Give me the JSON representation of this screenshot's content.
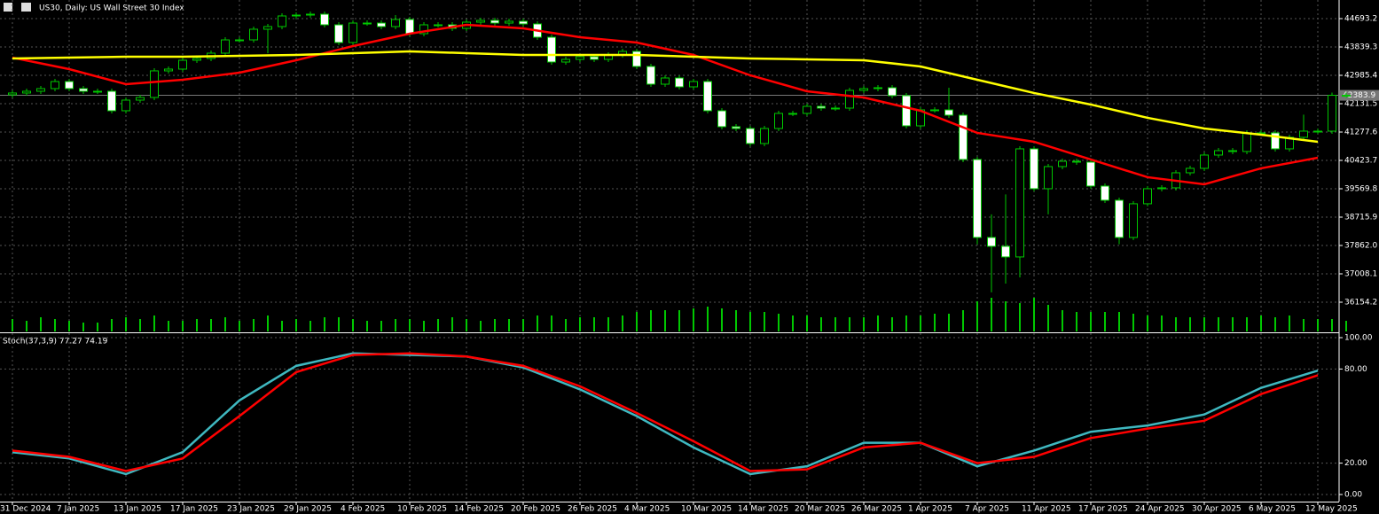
{
  "chart_data": {
    "type": "candlestick",
    "title": "US30, Daily: US Wall Street 30 Index",
    "open": [
      42400,
      42453,
      42506,
      42586,
      42799,
      42586,
      42506,
      42506,
      41919,
      42239,
      42319,
      43120,
      43173,
      43440,
      43493,
      43653,
      44053,
      44053,
      44374,
      44454,
      44774,
      44800,
      44827,
      44507,
      43973,
      44560,
      44560,
      44454,
      44667,
      44240,
      44507,
      44507,
      44400,
      44587,
      44640,
      44560,
      44614,
      44534,
      44133,
      43386,
      43466,
      43546,
      43466,
      43600,
      43707,
      43253,
      42719,
      42906,
      42639,
      42799,
      41919,
      41439,
      41385,
      40932,
      41385,
      41839,
      41839,
      42052,
      41999,
      41999,
      42533,
      42586,
      42613,
      42373,
      41465,
      41946,
      41946,
      41786,
      40452,
      38104,
      37837,
      37517,
      40772,
      39571,
      40238,
      40398,
      40372,
      39651,
      39224,
      38104,
      39118,
      39571,
      39598,
      40051,
      40185,
      40585,
      40718,
      40692,
      41252,
      41252,
      40772,
      41119,
      41305,
      41305,
      42384
    ],
    "high": [
      42533,
      42586,
      42666,
      42879,
      42879,
      42666,
      42586,
      42586,
      42319,
      42399,
      43200,
      43253,
      43520,
      43573,
      43733,
      44133,
      44133,
      44454,
      44534,
      44854,
      44880,
      44907,
      44907,
      44587,
      44640,
      44640,
      44640,
      44800,
      44747,
      44587,
      44587,
      44587,
      44667,
      44720,
      44720,
      44694,
      44694,
      44614,
      44213,
      43546,
      43626,
      43626,
      43680,
      43787,
      43787,
      43333,
      42986,
      42986,
      42879,
      42879,
      41999,
      41519,
      41465,
      41465,
      41919,
      41919,
      42132,
      42132,
      42079,
      42613,
      42666,
      42693,
      42693,
      42453,
      42026,
      42026,
      42613,
      41866,
      40532,
      38800,
      39400,
      40852,
      40852,
      40318,
      40478,
      40478,
      40452,
      39731,
      39304,
      39198,
      39651,
      39678,
      40131,
      40265,
      40665,
      40798,
      40798,
      41332,
      41332,
      41332,
      41199,
      41800,
      41385,
      42464,
      42464
    ],
    "low": [
      42320,
      42373,
      42426,
      42506,
      42506,
      42426,
      42426,
      41839,
      41839,
      42159,
      42239,
      43040,
      43093,
      43360,
      43413,
      43573,
      43973,
      43973,
      43650,
      44374,
      44694,
      44720,
      44427,
      43893,
      43893,
      44480,
      44374,
      44374,
      44160,
      44160,
      44427,
      44320,
      44320,
      44507,
      44480,
      44480,
      44454,
      44053,
      43306,
      43306,
      43386,
      43386,
      43386,
      43520,
      43173,
      42639,
      42639,
      42559,
      42559,
      41839,
      41359,
      41305,
      40852,
      40852,
      41305,
      41759,
      41759,
      41919,
      41919,
      41919,
      42453,
      42506,
      42293,
      41385,
      41385,
      41866,
      41706,
      40372,
      37900,
      36450,
      36716,
      36900,
      39491,
      38800,
      40158,
      40292,
      39571,
      39144,
      37900,
      38024,
      39038,
      39491,
      39518,
      39971,
      40105,
      40505,
      40612,
      40612,
      41172,
      40692,
      40692,
      41039,
      41225,
      41225,
      42304
    ],
    "close": [
      42453,
      42506,
      42586,
      42799,
      42586,
      42506,
      42506,
      41919,
      42239,
      42319,
      43120,
      43173,
      43440,
      43493,
      43653,
      44053,
      44053,
      44374,
      44454,
      44774,
      44800,
      44827,
      44507,
      43973,
      44560,
      44560,
      44454,
      44667,
      44240,
      44507,
      44507,
      44400,
      44587,
      44640,
      44560,
      44614,
      44534,
      44133,
      43386,
      43466,
      43546,
      43466,
      43600,
      43707,
      43253,
      42719,
      42906,
      42639,
      42799,
      41919,
      41439,
      41385,
      40932,
      41385,
      41839,
      41839,
      42052,
      41999,
      41999,
      42533,
      42586,
      42613,
      42373,
      41465,
      41946,
      41946,
      41786,
      40452,
      38104,
      37837,
      37517,
      40772,
      39571,
      40238,
      40398,
      40372,
      39651,
      39224,
      38104,
      39118,
      39571,
      39598,
      40051,
      40185,
      40585,
      40718,
      40692,
      41252,
      41252,
      40772,
      41119,
      41305,
      41305,
      42384,
      42384
    ],
    "volume": [
      14,
      12,
      16,
      14,
      12,
      10,
      10,
      14,
      16,
      14,
      18,
      12,
      12,
      14,
      14,
      16,
      12,
      14,
      18,
      12,
      14,
      12,
      16,
      16,
      14,
      12,
      12,
      14,
      14,
      12,
      14,
      16,
      14,
      12,
      14,
      14,
      14,
      18,
      18,
      14,
      16,
      16,
      16,
      18,
      22,
      24,
      24,
      24,
      26,
      28,
      26,
      24,
      22,
      22,
      20,
      18,
      18,
      16,
      16,
      16,
      16,
      18,
      16,
      18,
      18,
      20,
      20,
      24,
      34,
      38,
      34,
      32,
      38,
      30,
      24,
      22,
      22,
      22,
      22,
      20,
      18,
      18,
      16,
      16,
      16,
      16,
      16,
      16,
      18,
      16,
      18,
      14,
      14,
      14,
      12
    ],
    "bull_color": "#00c800",
    "bear_color": "#ffffff",
    "volume_color": "#00c800",
    "last_price": 42383.9,
    "ylim": [
      35247,
      45254
    ],
    "yticks": [
      44693.2,
      43839.3,
      42985.4,
      42131.5,
      41277.6,
      40423.7,
      39569.8,
      38715.9,
      {
        "value": 37862,
        "label": "37862.0"
      },
      37008.1,
      36154.2
    ],
    "xticks": [
      {
        "value": 0,
        "label": "31 Dec 2024"
      },
      {
        "value": 4,
        "label": "7 Jan 2025"
      },
      {
        "value": 8,
        "label": "13 Jan 2025"
      },
      {
        "value": 12,
        "label": "17 Jan 2025"
      },
      {
        "value": 16,
        "label": "23 Jan 2025"
      },
      {
        "value": 20,
        "label": "29 Jan 2025"
      },
      {
        "value": 24,
        "label": "4 Feb 2025"
      },
      {
        "value": 28,
        "label": "10 Feb 2025"
      },
      {
        "value": 32,
        "label": "14 Feb 2025"
      },
      {
        "value": 36,
        "label": "20 Feb 2025"
      },
      {
        "value": 40,
        "label": "26 Feb 2025"
      },
      {
        "value": 44,
        "label": "4 Mar 2025"
      },
      {
        "value": 48,
        "label": "10 Mar 2025"
      },
      {
        "value": 52,
        "label": "14 Mar 2025"
      },
      {
        "value": 56,
        "label": "20 Mar 2025"
      },
      {
        "value": 60,
        "label": "26 Mar 2025"
      },
      {
        "value": 64,
        "label": "1 Apr 2025"
      },
      {
        "value": 68,
        "label": "7 Apr 2025"
      },
      {
        "value": 72,
        "label": "11 Apr 2025"
      },
      {
        "value": 76,
        "label": "17 Apr 2025"
      },
      {
        "value": 80,
        "label": "24 Apr 2025"
      },
      {
        "value": 84,
        "label": "30 Apr 2025"
      },
      {
        "value": 88,
        "label": "6 May 2025"
      },
      {
        "value": 92,
        "label": "12 May 2025"
      }
    ],
    "grid": true,
    "series": [
      {
        "color": "#ff0000",
        "x": [
          0,
          4,
          8,
          12,
          16,
          20,
          24,
          28,
          32,
          36,
          40,
          44,
          48,
          52,
          56,
          60,
          64,
          68,
          72,
          76,
          80,
          84,
          88,
          92
        ],
        "values": [
          43520,
          43173,
          42719,
          42853,
          43066,
          43440,
          43867,
          44240,
          44507,
          44400,
          44133,
          43973,
          43600,
          42986,
          42506,
          42319,
          41919,
          41252,
          40985,
          40452,
          39918,
          39704,
          40185,
          40505
        ]
      },
      {
        "color": "#ffff00",
        "x": [
          0,
          4,
          8,
          12,
          16,
          20,
          24,
          28,
          32,
          36,
          40,
          44,
          48,
          52,
          56,
          60,
          64,
          68,
          72,
          76,
          80,
          84,
          88,
          92
        ],
        "values": [
          43493,
          43520,
          43546,
          43546,
          43573,
          43600,
          43653,
          43707,
          43653,
          43600,
          43600,
          43600,
          43546,
          43493,
          43466,
          43440,
          43253,
          42853,
          42453,
          42106,
          41706,
          41385,
          41199,
          40985
        ]
      }
    ],
    "stochastic": {
      "title": "Stoch(37,3,9) 77.27 74.19",
      "ylim": [
        0,
        100
      ],
      "yticks": [
        {
          "value": 100,
          "label": "100.00"
        },
        {
          "value": 80,
          "label": "80.00"
        },
        {
          "value": 20,
          "label": "20.00"
        },
        {
          "value": 0,
          "label": "0.00"
        }
      ],
      "series": [
        {
          "color": "#3fb8c0",
          "x": [
            0,
            4,
            8,
            12,
            16,
            20,
            24,
            28,
            32,
            36,
            40,
            44,
            48,
            52,
            56,
            60,
            64,
            68,
            72,
            76,
            80,
            84,
            88,
            92
          ],
          "values": [
            27,
            23,
            13,
            27,
            60,
            82,
            90,
            89,
            88,
            81,
            67,
            50,
            30,
            13,
            18,
            33,
            33,
            18,
            28,
            40,
            44,
            51,
            68,
            79
          ]
        },
        {
          "color": "#ff0000",
          "x": [
            0,
            4,
            8,
            12,
            16,
            20,
            24,
            28,
            32,
            36,
            40,
            44,
            48,
            52,
            56,
            60,
            64,
            68,
            72,
            76,
            80,
            84,
            88,
            92
          ],
          "values": [
            28,
            24,
            15,
            23,
            50,
            78,
            89,
            90,
            88,
            82,
            69,
            52,
            34,
            15,
            16,
            30,
            33,
            20,
            24,
            36,
            42,
            47,
            64,
            76
          ]
        }
      ]
    }
  }
}
